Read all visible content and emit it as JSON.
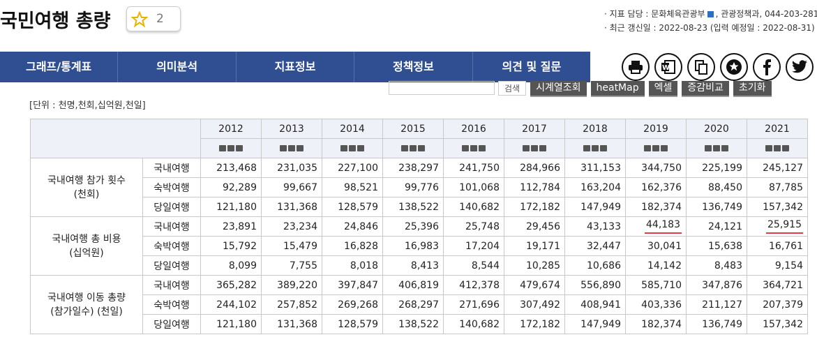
{
  "header": {
    "title": "국민여행 총량",
    "star_count": "2",
    "meta": [
      "· 지표 담당 : 문화체육관광부",
      ", 관광정책과, 044-203-281",
      "· 최근 갱신일 : 2022-08-23 (입력 예정일 : 2022-08-31)"
    ]
  },
  "tabs": [
    "그래프/통계표",
    "의미분석",
    "지표정보",
    "정책정보",
    "의견 및 질문"
  ],
  "buttons": [
    "검색",
    "시계열조회",
    "heatMap",
    "엑셀",
    "증감비교",
    "초기화"
  ],
  "unit": "[단위 : 천명,천회,십억원,천일]",
  "table": {
    "years": [
      "2012",
      "2013",
      "2014",
      "2015",
      "2016",
      "2017",
      "2018",
      "2019",
      "2020",
      "2021"
    ],
    "groups": [
      {
        "label": [
          "국내여행 참가 횟수",
          "(천회)"
        ],
        "rows": [
          {
            "name": "국내여행",
            "cells": [
              "213,468",
              "231,035",
              "227,100",
              "238,297",
              "241,750",
              "284,966",
              "311,153",
              "344,750",
              "225,199",
              "245,127"
            ]
          },
          {
            "name": "숙박여행",
            "cells": [
              "92,289",
              "99,667",
              "98,521",
              "99,776",
              "101,068",
              "112,784",
              "163,204",
              "162,376",
              "88,450",
              "87,785"
            ]
          },
          {
            "name": "당일여행",
            "cells": [
              "121,180",
              "131,368",
              "128,579",
              "138,522",
              "140,682",
              "172,182",
              "147,949",
              "182,374",
              "136,749",
              "157,342"
            ]
          }
        ]
      },
      {
        "label": [
          "국내여행 총 비용",
          "(십억원)"
        ],
        "rows": [
          {
            "name": "국내여행",
            "cells": [
              "23,891",
              "23,234",
              "24,846",
              "25,396",
              "25,748",
              "29,456",
              "43,133",
              "44,183",
              "24,121",
              "25,915"
            ]
          },
          {
            "name": "숙박여행",
            "cells": [
              "15,792",
              "15,479",
              "16,828",
              "16,983",
              "17,204",
              "19,171",
              "32,447",
              "30,041",
              "15,638",
              "16,761"
            ]
          },
          {
            "name": "당일여행",
            "cells": [
              "8,099",
              "7,755",
              "8,018",
              "8,413",
              "8,544",
              "10,285",
              "10,686",
              "14,142",
              "8,483",
              "9,154"
            ]
          }
        ]
      },
      {
        "label": [
          "국내여행 이동 총량",
          "(참가일수) (천일)"
        ],
        "rows": [
          {
            "name": "국내여행",
            "cells": [
              "365,282",
              "389,220",
              "397,847",
              "406,819",
              "412,378",
              "479,674",
              "556,890",
              "585,710",
              "347,876",
              "364,721"
            ]
          },
          {
            "name": "숙박여행",
            "cells": [
              "244,102",
              "257,852",
              "269,268",
              "268,297",
              "271,696",
              "307,492",
              "408,941",
              "403,336",
              "211,127",
              "207,379"
            ]
          },
          {
            "name": "당일여행",
            "cells": [
              "121,180",
              "131,368",
              "128,579",
              "138,522",
              "140,682",
              "172,182",
              "147,949",
              "182,374",
              "136,749",
              "157,342"
            ]
          }
        ]
      }
    ]
  }
}
